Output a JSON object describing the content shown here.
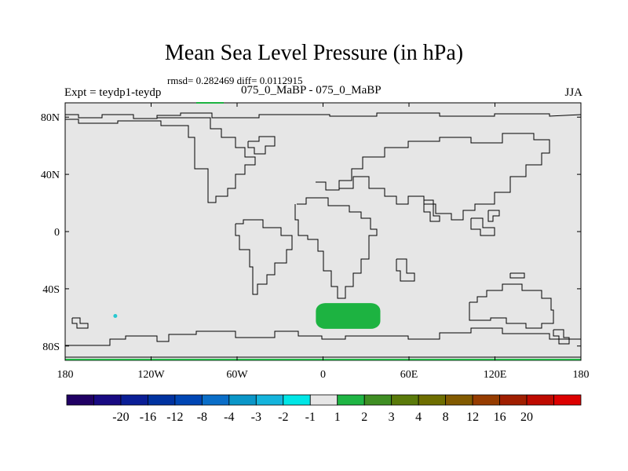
{
  "title": "Mean Sea Level Pressure (in hPa)",
  "stats_text": "rmsd= 0.282469 diff= 0.0112915",
  "expt_label": "Expt = teydp1-teydp",
  "case_label": "075_0_MaBP - 075_0_MaBP",
  "season_label": "JJA",
  "map": {
    "background_color": "#e6e6e6",
    "coastline_color": "#000000",
    "lat_ticks": [
      "80N",
      "40N",
      "0",
      "40S",
      "80S"
    ],
    "lon_ticks": [
      "180",
      "120W",
      "60W",
      "0",
      "60E",
      "120E",
      "180"
    ],
    "anomalies": [
      {
        "label": "positive anomaly over South Atlantic",
        "lon_range": [
          -5,
          40
        ],
        "lat_range": [
          -68,
          -50
        ],
        "bin": "1 to 2",
        "color": "#1db341"
      },
      {
        "label": "small negative anomaly in South Pacific",
        "lon": -145,
        "lat": -59,
        "bin": "-2 to -1",
        "color": "#28c8d0"
      }
    ]
  },
  "colorbar": {
    "colors": [
      "#200064",
      "#180a82",
      "#0a1e96",
      "#0032a0",
      "#0046b4",
      "#0a6ec8",
      "#0a96c8",
      "#14b4dc",
      "#00e6e6",
      "#e6e6e6",
      "#1fb544",
      "#3f8e23",
      "#5a7a0a",
      "#6e6e00",
      "#825a00",
      "#963c00",
      "#a01e00",
      "#be0a00",
      "#dc0000"
    ],
    "labels": [
      "-20",
      "-16",
      "-12",
      "-8",
      "-4",
      "-3",
      "-2",
      "-1",
      "1",
      "2",
      "3",
      "4",
      "8",
      "12",
      "16",
      "20"
    ]
  }
}
